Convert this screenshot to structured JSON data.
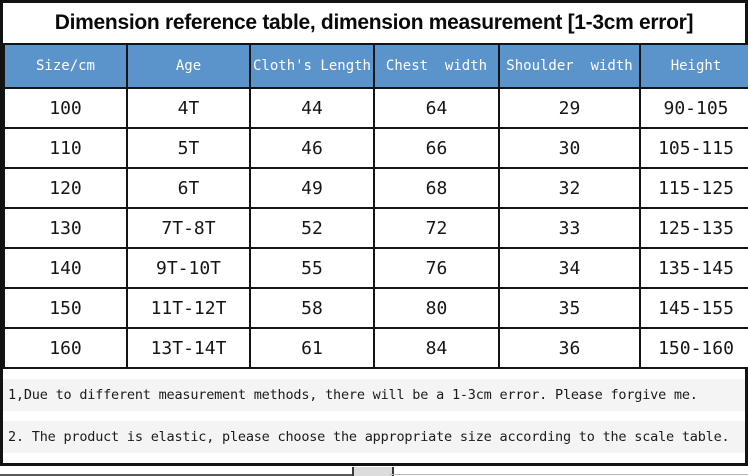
{
  "title": "Dimension reference table, dimension measurement [1-3cm error]",
  "colors": {
    "header_bg": "#5b93cb",
    "header_text": "#ffffff",
    "grid_border": "#141414",
    "note_bg": "#f4f4f4"
  },
  "table": {
    "headers": [
      "Size/cm",
      "Age",
      "Cloth's Length",
      "Chest  width",
      "Shoulder  width",
      "Height"
    ],
    "rows": [
      [
        "100",
        "4T",
        "44",
        "64",
        "29",
        "90-105"
      ],
      [
        "110",
        "5T",
        "46",
        "66",
        "30",
        "105-115"
      ],
      [
        "120",
        "6T",
        "49",
        "68",
        "32",
        "115-125"
      ],
      [
        "130",
        "7T-8T",
        "52",
        "72",
        "33",
        "125-135"
      ],
      [
        "140",
        "9T-10T",
        "55",
        "76",
        "34",
        "135-145"
      ],
      [
        "150",
        "11T-12T",
        "58",
        "80",
        "35",
        "145-155"
      ],
      [
        "160",
        "13T-14T",
        "61",
        "84",
        "36",
        "150-160"
      ]
    ]
  },
  "notes": [
    "1,Due to different measurement methods, there will be a 1-3cm error. Please forgive me.",
    "2. The product is elastic, please choose the appropriate size according to the scale table."
  ]
}
